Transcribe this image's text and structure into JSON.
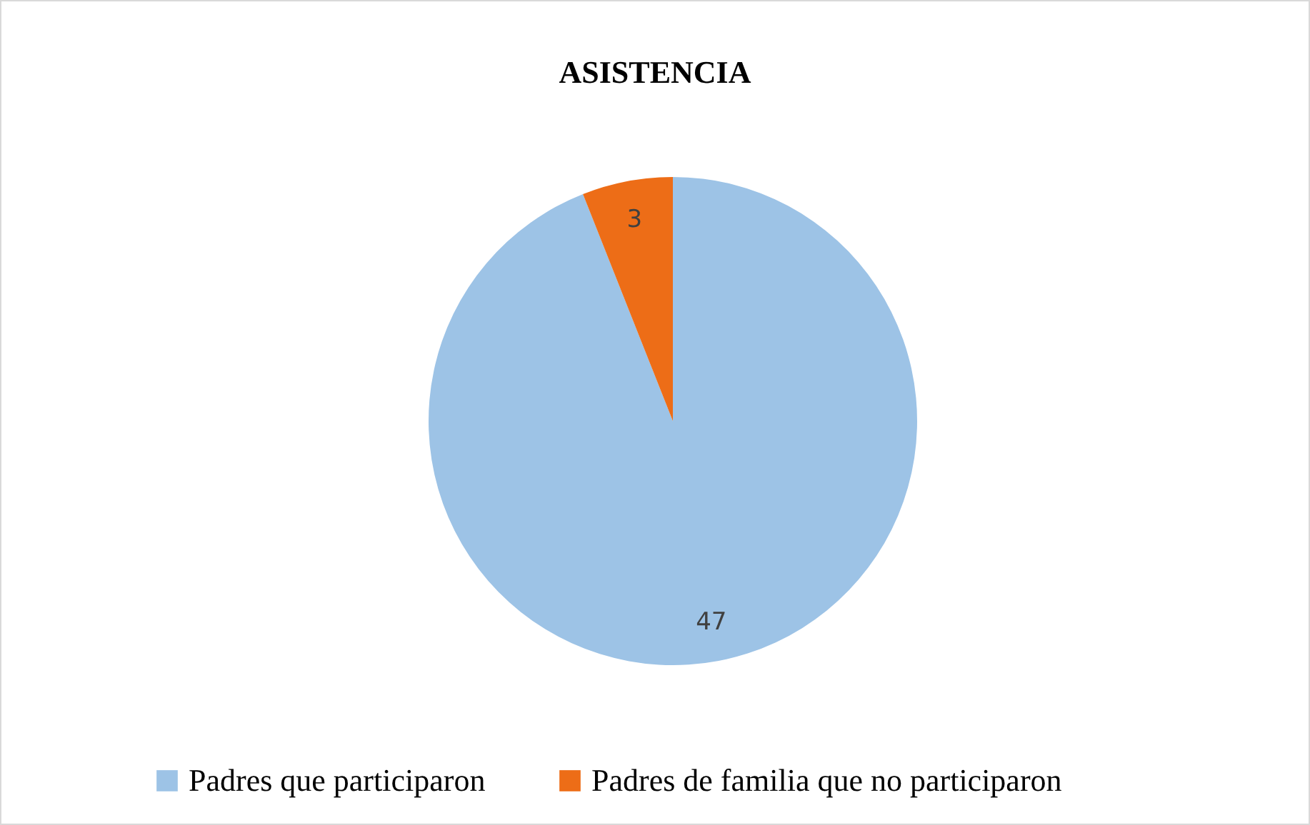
{
  "chart_data": {
    "type": "pie",
    "title": "ASISTENCIA",
    "categories": [
      "Padres que participaron",
      "Padres de familia que no participaron"
    ],
    "values": [
      47,
      3
    ],
    "colors": [
      "#9dc3e6",
      "#ed6d17"
    ],
    "data_labels": true,
    "legend": "bottom"
  }
}
